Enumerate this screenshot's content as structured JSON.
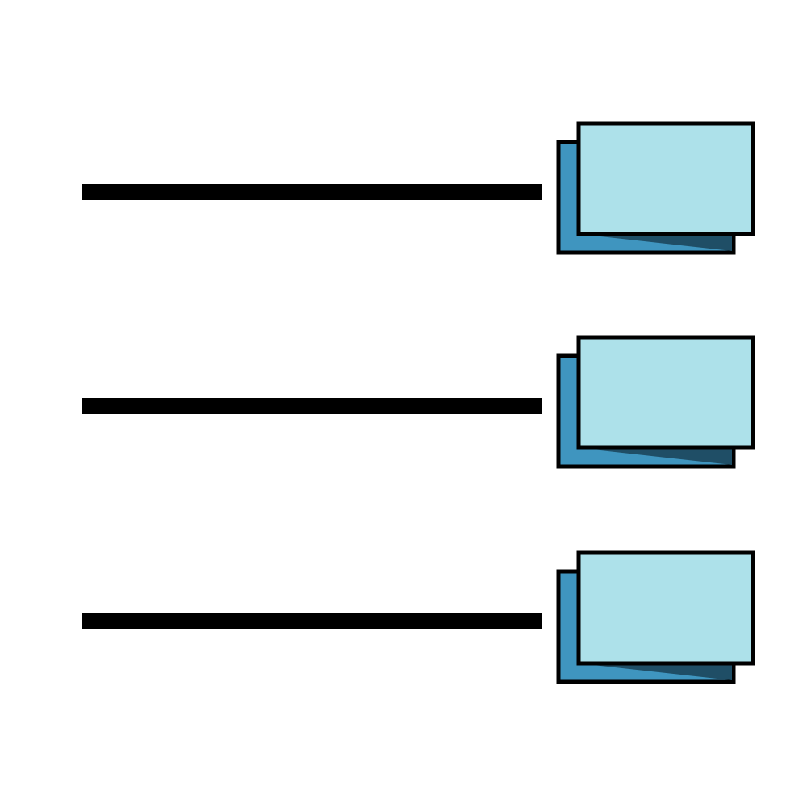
{
  "diagram": {
    "description_type": "list-to-stacked-cards",
    "rows": [
      {
        "id": "row-1",
        "connector": "line",
        "target": "card-stack-icon"
      },
      {
        "id": "row-2",
        "connector": "line",
        "target": "card-stack-icon"
      },
      {
        "id": "row-3",
        "connector": "line",
        "target": "card-stack-icon"
      }
    ]
  },
  "colors": {
    "background": "#ffffff",
    "line": "#000000",
    "card_front": "#ade1ea",
    "card_back": "#3f95bf",
    "card_back_shadow": "#1f4e66",
    "card_stroke": "#000000"
  }
}
